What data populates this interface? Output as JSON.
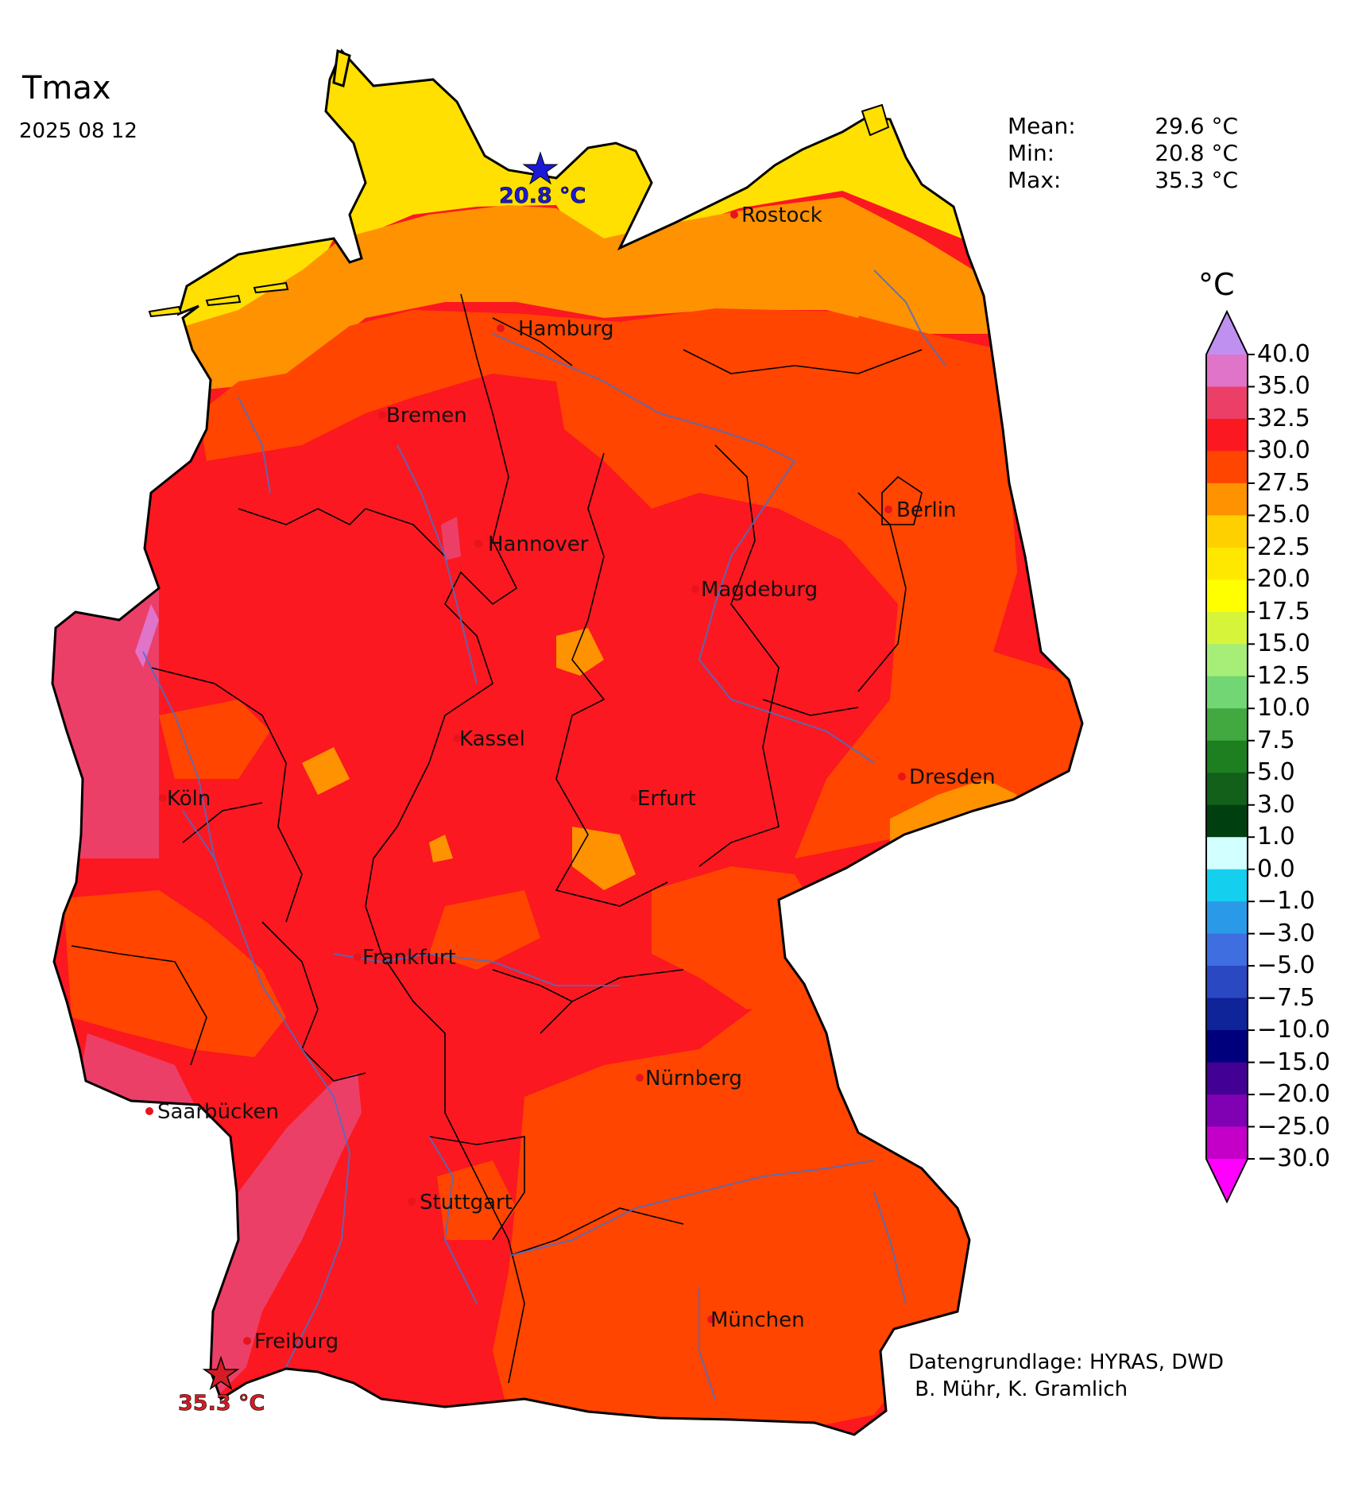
{
  "header": {
    "title": "Tmax",
    "date": "2025 08 12"
  },
  "stats": [
    {
      "label": "Mean:",
      "value": "29.6 °C"
    },
    {
      "label": "Min:",
      "value": "20.8 °C"
    },
    {
      "label": "Max:",
      "value": "35.3 °C"
    }
  ],
  "cities": [
    {
      "name": "Rostock"
    },
    {
      "name": "Hamburg"
    },
    {
      "name": "Bremen"
    },
    {
      "name": "Berlin"
    },
    {
      "name": "Hannover"
    },
    {
      "name": "Magdeburg"
    },
    {
      "name": "Kassel"
    },
    {
      "name": "Dresden"
    },
    {
      "name": "Köln"
    },
    {
      "name": "Erfurt"
    },
    {
      "name": "Frankfurt"
    },
    {
      "name": "Nürnberg"
    },
    {
      "name": "Saarbücken"
    },
    {
      "name": "Stuttgart"
    },
    {
      "name": "München"
    },
    {
      "name": "Freiburg"
    }
  ],
  "markers": {
    "min": {
      "label": "20.8 °C",
      "color": "#1a1ad6"
    },
    "max": {
      "label": "35.3 °C",
      "color": "#d41c24"
    }
  },
  "colorbar": {
    "unit": "°C",
    "ticks": [
      "40.0",
      "35.0",
      "32.5",
      "30.0",
      "27.5",
      "25.0",
      "22.5",
      "20.0",
      "17.5",
      "15.0",
      "12.5",
      "10.0",
      "7.5",
      "5.0",
      "3.0",
      "1.0",
      "0.0",
      "−1.0",
      "−3.0",
      "−5.0",
      "−7.5",
      "−10.0",
      "−15.0",
      "−20.0",
      "−25.0",
      "−30.0"
    ],
    "colors": [
      "#e074c8",
      "#ec3f68",
      "#fb1820",
      "#ff4500",
      "#ff9200",
      "#ffd000",
      "#ffe800",
      "#ffff00",
      "#d6f53a",
      "#a6ee78",
      "#72d674",
      "#42a840",
      "#1e7f20",
      "#12601a",
      "#004010",
      "#d2ffff",
      "#14cfee",
      "#2a9ae8",
      "#3e6ee0",
      "#2a48c2",
      "#10249a",
      "#00007c",
      "#420094",
      "#8000b4",
      "#c400c8"
    ],
    "arrow_top_color": "#c090f0",
    "arrow_bottom_color": "#ff00ff"
  },
  "credit": {
    "line1": "Datengrundlage: HYRAS, DWD",
    "line2": " B. Mühr, K. Gramlich"
  }
}
